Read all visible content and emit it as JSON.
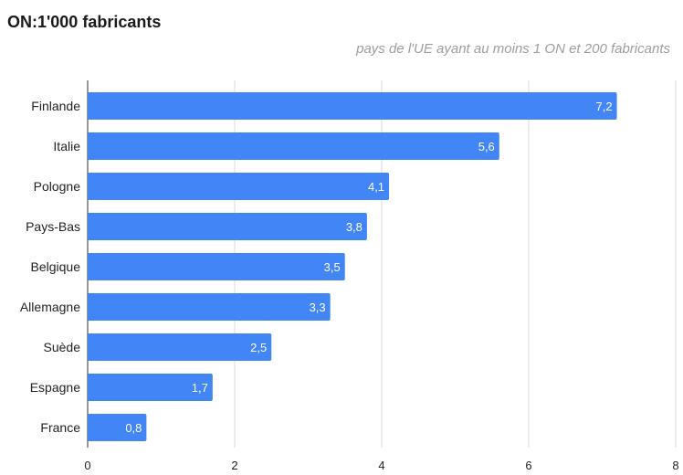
{
  "chart_data": {
    "type": "bar",
    "orientation": "horizontal",
    "title": "ON:1'000 fabricants",
    "subtitle": "pays de l'UE ayant au moins 1 ON et 200 fabricants",
    "categories": [
      "Finlande",
      "Italie",
      "Pologne",
      "Pays-Bas",
      "Belgique",
      "Allemagne",
      "Suède",
      "Espagne",
      "France"
    ],
    "values": [
      7.2,
      5.6,
      4.1,
      3.8,
      3.5,
      3.3,
      2.5,
      1.7,
      0.8
    ],
    "value_labels": [
      "7,2",
      "5,6",
      "4,1",
      "3,8",
      "3,5",
      "3,3",
      "2,5",
      "1,7",
      "0,8"
    ],
    "xlim": [
      0,
      8
    ],
    "xticks": [
      0,
      2,
      4,
      6,
      8
    ],
    "xtick_labels": [
      "0",
      "2",
      "4",
      "6",
      "8"
    ],
    "grid": true,
    "bar_color": "#4285f4",
    "grid_color": "#d9d9d9"
  }
}
